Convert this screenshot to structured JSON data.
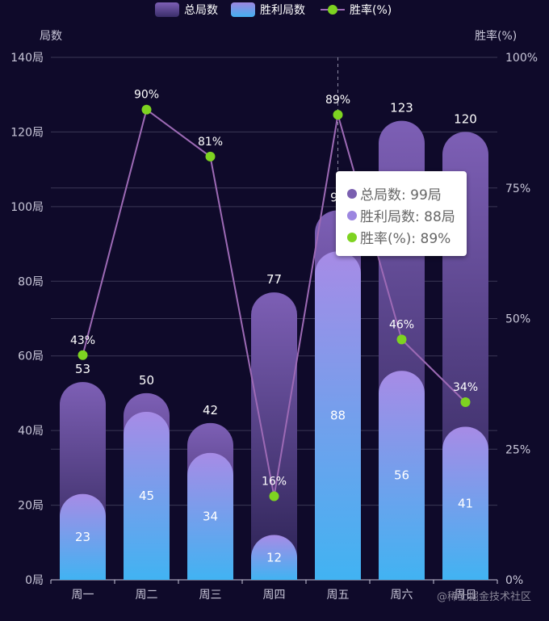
{
  "chart_data": {
    "type": "bar+line",
    "categories": [
      "周一",
      "周二",
      "周三",
      "周四",
      "周五",
      "周六",
      "周日"
    ],
    "series": [
      {
        "name": "总局数",
        "type": "bar",
        "values": [
          53,
          50,
          42,
          77,
          99,
          123,
          120
        ]
      },
      {
        "name": "胜利局数",
        "type": "bar",
        "values": [
          23,
          45,
          34,
          12,
          88,
          56,
          41
        ]
      },
      {
        "name": "胜率(%)",
        "type": "line",
        "values": [
          43,
          90,
          81,
          16,
          89,
          46,
          34
        ]
      }
    ],
    "left_axis": {
      "name": "局数",
      "min": 0,
      "max": 140,
      "interval": 20,
      "unit": "局",
      "ticks": [
        "0局",
        "20局",
        "40局",
        "60局",
        "80局",
        "100局",
        "120局",
        "140局"
      ]
    },
    "right_axis": {
      "name": "胜率(%)",
      "min": 0,
      "max": 100,
      "interval": 25,
      "unit": "%",
      "ticks": [
        "0%",
        "25%",
        "50%",
        "75%",
        "100%"
      ]
    },
    "legend_position": "top-center",
    "rate_labels": [
      "43%",
      "90%",
      "81%",
      "16%",
      "89%",
      "46%",
      "34%"
    ],
    "highlighted_category_index": 4
  },
  "legend": {
    "total": "总局数",
    "wins": "胜利局数",
    "rate": "胜率(%)"
  },
  "tooltip": {
    "rows": [
      {
        "label": "总局数: 99局",
        "color": "#7a5fb0"
      },
      {
        "label": "胜利局数: 88局",
        "color": "#9c86e0"
      },
      {
        "label": "胜率(%): 89%",
        "color": "#7ed321"
      }
    ]
  },
  "colors": {
    "background": "#0f0a2a",
    "total_top": "#7d5fb5",
    "total_bottom": "#2e2456",
    "win_top": "#a38ae6",
    "win_bottom": "#44b0f0",
    "line": "#9d6ab5",
    "point": "#7ed321",
    "grid": "#3b3856"
  },
  "watermark": "@稀土掘金技术社区"
}
